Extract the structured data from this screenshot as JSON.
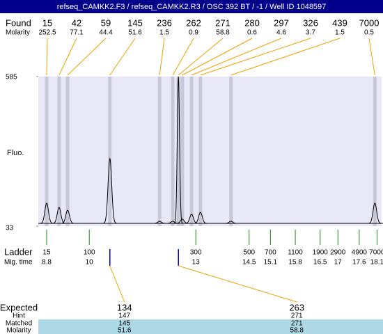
{
  "chart_data": {
    "type": "electropherogram",
    "title": "refseq_CAMKK2.F3 / refseq_CAMKK2.R3 / OSC 392 BT / -1 / Well ID 1048597",
    "ylabel": "Fluo.",
    "ylim": [
      33,
      585
    ],
    "yticks": [
      33,
      585
    ],
    "xlim": [
      8.565,
      18.23
    ],
    "found": {
      "label": "Found",
      "molarity_label": "Molarity",
      "sizes": [
        15,
        42,
        59,
        145,
        236,
        262,
        271,
        280,
        297,
        326,
        439,
        7000
      ],
      "molarity": [
        252.5,
        77.1,
        44.4,
        51.6,
        1.5,
        0.9,
        58.8,
        0.6,
        4.6,
        3.7,
        1.5,
        0.5
      ],
      "mig_time": [
        8.8,
        9.15,
        9.39,
        10.58,
        11.98,
        12.35,
        12.51,
        12.62,
        12.88,
        13.13,
        13.99,
        18.04
      ],
      "heights": [
        118,
        102,
        92,
        282,
        51,
        51,
        585,
        59,
        77,
        84,
        51,
        118
      ]
    },
    "ladder": {
      "label": "Ladder",
      "mig_label": "Mig. time",
      "sizes": [
        15,
        100,
        300,
        500,
        700,
        1100,
        1900,
        2900,
        4900,
        7000
      ],
      "mig_time": [
        8.8,
        10,
        13,
        14.5,
        15.1,
        15.8,
        16.5,
        17,
        17.6,
        18.1
      ]
    },
    "expected": {
      "label": "Expected",
      "hint_label": "Hint",
      "matched_label": "Matched",
      "molarity_label": "Molarity",
      "sizes": [
        134,
        263
      ],
      "hint": [
        147,
        271
      ],
      "matched": [
        145,
        271
      ],
      "molarity": [
        51.6,
        58.8
      ]
    }
  }
}
